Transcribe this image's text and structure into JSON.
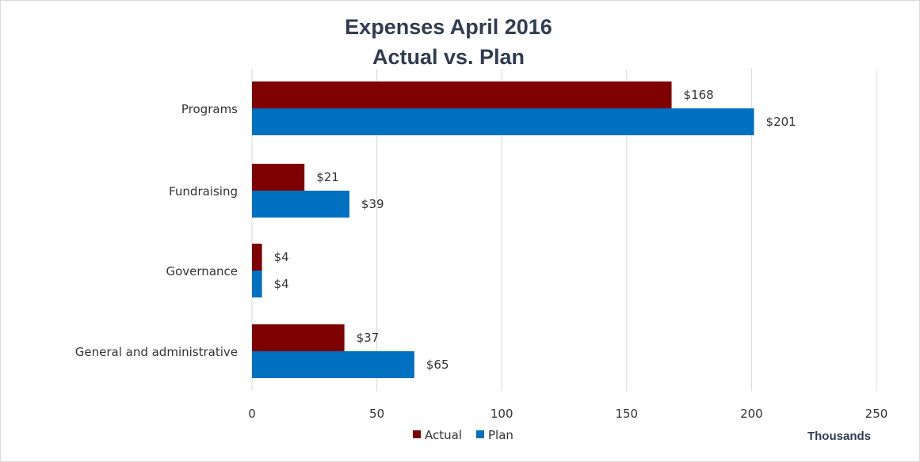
{
  "chart_data": {
    "type": "bar",
    "orientation": "horizontal",
    "title": [
      "Expenses April 2016",
      "Actual vs. Plan"
    ],
    "categories": [
      "Programs",
      "Fundraising",
      "Governance",
      "General and administrative"
    ],
    "series": [
      {
        "name": "Actual",
        "color": "#7f0000",
        "values": [
          168,
          21,
          4,
          37
        ],
        "labels": [
          "$168",
          "$21",
          "$4",
          "$37"
        ]
      },
      {
        "name": "Plan",
        "color": "#0070c0",
        "values": [
          201,
          39,
          4,
          65
        ],
        "labels": [
          "$201",
          "$39",
          "$4",
          "$65"
        ]
      }
    ],
    "xlim": [
      0,
      250
    ],
    "xticks": [
      0,
      50,
      100,
      150,
      200,
      250
    ],
    "xtick_labels": [
      "0",
      "50",
      "100",
      "150",
      "200",
      "250"
    ],
    "unit_label": "Thousands",
    "grid": true,
    "legend": "bottom-center"
  }
}
